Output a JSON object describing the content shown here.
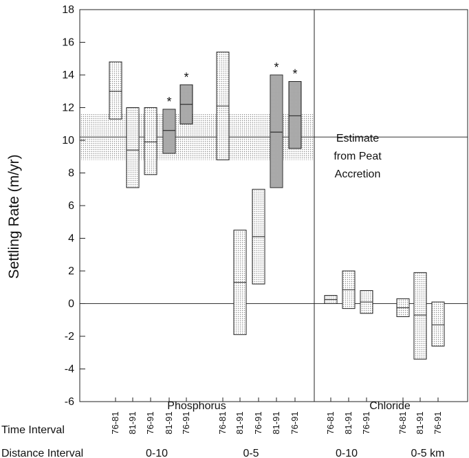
{
  "chart_data": {
    "type": "box",
    "ylabel": "Settling Rate (m/yr)",
    "ylim": [
      -6,
      18
    ],
    "yticks": [
      -6,
      -4,
      -2,
      0,
      2,
      4,
      6,
      8,
      10,
      12,
      14,
      16,
      18
    ],
    "grid": false,
    "reference_line": {
      "value": 10.2,
      "band": [
        8.8,
        11.6
      ],
      "label": [
        "Estimate",
        "from Peat",
        "Accretion"
      ]
    },
    "panels": [
      {
        "name": "Phosphorus"
      },
      {
        "name": "Chloride"
      }
    ],
    "row_labels": {
      "time": "Time Interval",
      "distance": "Distance Interval"
    },
    "distance_groups": [
      {
        "label": "0-10",
        "panel": "Phosphorus"
      },
      {
        "label": "0-5",
        "panel": "Phosphorus"
      },
      {
        "label": "0-10",
        "panel": "Chloride"
      },
      {
        "label": "0-5 km",
        "panel": "Chloride"
      }
    ],
    "series": [
      {
        "panel": "Phosphorus",
        "distance": "0-10",
        "time": "76-81",
        "low": 11.3,
        "mid": 13.0,
        "high": 14.8,
        "starred": false
      },
      {
        "panel": "Phosphorus",
        "distance": "0-10",
        "time": "81-91",
        "low": 7.1,
        "mid": 9.4,
        "high": 12.0,
        "starred": false
      },
      {
        "panel": "Phosphorus",
        "distance": "0-10",
        "time": "76-91",
        "low": 7.9,
        "mid": 9.9,
        "high": 12.0,
        "starred": false
      },
      {
        "panel": "Phosphorus",
        "distance": "0-10",
        "time": "81-91",
        "low": 9.2,
        "mid": 10.6,
        "high": 11.9,
        "starred": true
      },
      {
        "panel": "Phosphorus",
        "distance": "0-10",
        "time": "76-91",
        "low": 11.0,
        "mid": 12.2,
        "high": 13.4,
        "starred": true
      },
      {
        "panel": "Phosphorus",
        "distance": "0-5",
        "time": "76-81",
        "low": 8.8,
        "mid": 12.1,
        "high": 15.4,
        "starred": false
      },
      {
        "panel": "Phosphorus",
        "distance": "0-5",
        "time": "81-91",
        "low": -1.9,
        "mid": 1.3,
        "high": 4.5,
        "starred": false
      },
      {
        "panel": "Phosphorus",
        "distance": "0-5",
        "time": "76-91",
        "low": 1.2,
        "mid": 4.1,
        "high": 7.0,
        "starred": false
      },
      {
        "panel": "Phosphorus",
        "distance": "0-5",
        "time": "81-91",
        "low": 7.1,
        "mid": 10.5,
        "high": 14.0,
        "starred": true
      },
      {
        "panel": "Phosphorus",
        "distance": "0-5",
        "time": "76-91",
        "low": 9.5,
        "mid": 11.5,
        "high": 13.6,
        "starred": true
      },
      {
        "panel": "Chloride",
        "distance": "0-10",
        "time": "76-81",
        "low": 0.0,
        "mid": 0.25,
        "high": 0.5,
        "starred": false
      },
      {
        "panel": "Chloride",
        "distance": "0-10",
        "time": "81-91",
        "low": -0.3,
        "mid": 0.85,
        "high": 2.0,
        "starred": false
      },
      {
        "panel": "Chloride",
        "distance": "0-10",
        "time": "76-91",
        "low": -0.6,
        "mid": 0.1,
        "high": 0.8,
        "starred": false
      },
      {
        "panel": "Chloride",
        "distance": "0-5 km",
        "time": "76-81",
        "low": -0.8,
        "mid": -0.25,
        "high": 0.3,
        "starred": false
      },
      {
        "panel": "Chloride",
        "distance": "0-5 km",
        "time": "81-91",
        "low": -3.4,
        "mid": -0.7,
        "high": 1.9,
        "starred": false
      },
      {
        "panel": "Chloride",
        "distance": "0-5 km",
        "time": "76-91",
        "low": -2.6,
        "mid": -1.3,
        "high": 0.1,
        "starred": false
      }
    ],
    "star_symbol": "*",
    "colors": {
      "box_light": "#e4e4e4",
      "box_dark": "#bdbdbd",
      "band": "#e9e9e9",
      "line": "#222222"
    }
  }
}
